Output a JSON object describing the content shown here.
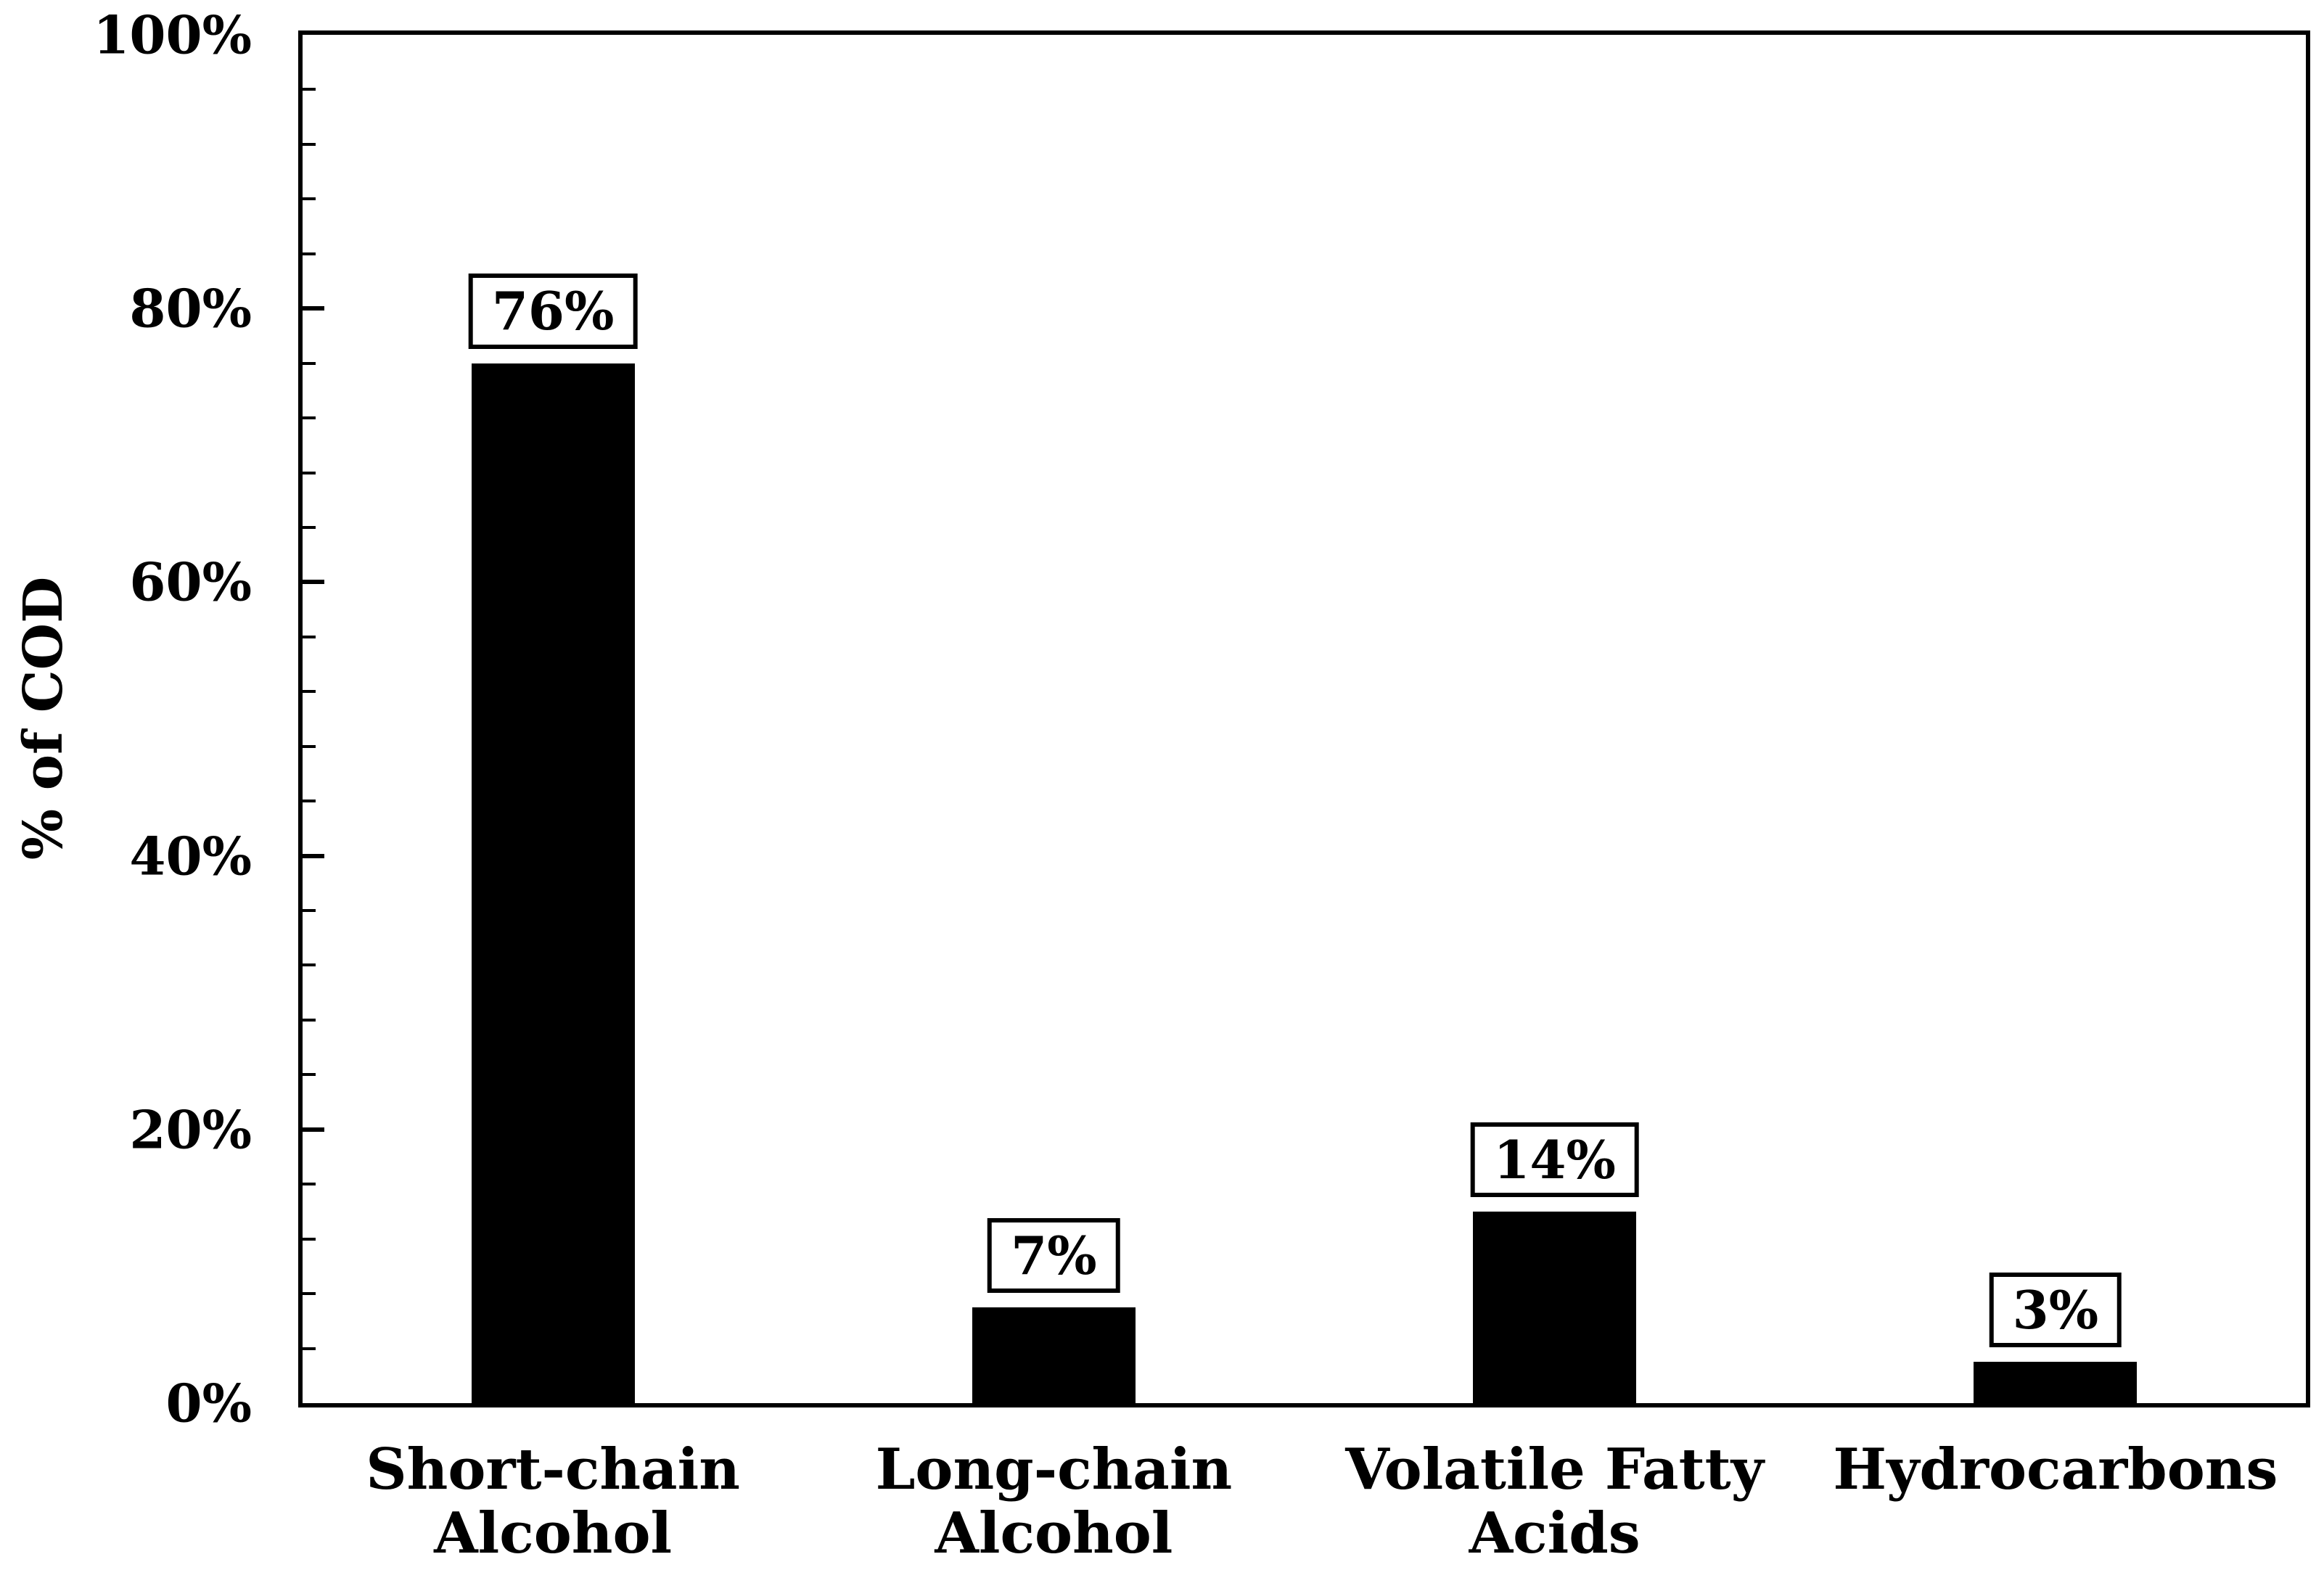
{
  "chart_data": {
    "type": "bar",
    "title": "",
    "categories": [
      "Short-chain\nAlcohol",
      "Long-chain\nAlcohol",
      "Volatile Fatty\nAcids",
      "Hydrocarbons"
    ],
    "values": [
      76,
      7,
      14,
      3
    ],
    "bar_labels": [
      "76%",
      "7%",
      "14%",
      "3%"
    ],
    "xlabel": "",
    "ylabel": "% of COD",
    "ylim": [
      0,
      100
    ],
    "ytick_labels": [
      "0%",
      "20%",
      "40%",
      "60%",
      "80%",
      "100%"
    ],
    "ytick_values": [
      0,
      20,
      40,
      60,
      80,
      100
    ],
    "minor_tick_step": 4,
    "grid": "off",
    "legend": "none",
    "bar_color": "#000000",
    "background_color": "#ffffff",
    "frame_color": "#000000"
  }
}
